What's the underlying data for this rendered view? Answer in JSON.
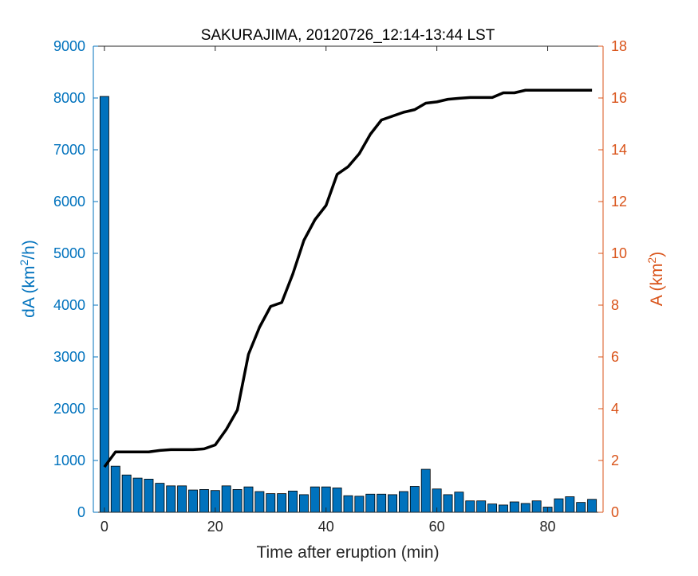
{
  "chart_data": {
    "type": "bar+line",
    "title": "SAKURAJIMA, 20120726_12:14-13:44 LST",
    "xlabel": "Time after eruption (min)",
    "ylabel_left": {
      "base": "dA (km",
      "sup": "2",
      "tail": "/h)"
    },
    "ylabel_right": {
      "base": "A (km",
      "sup": "2",
      "tail": ")"
    },
    "xlim": [
      -2,
      90
    ],
    "ylim_left": [
      0,
      9000
    ],
    "ylim_right": [
      0,
      18
    ],
    "xticks": [
      0,
      20,
      40,
      60,
      80
    ],
    "yticks_left": [
      0,
      1000,
      2000,
      3000,
      4000,
      5000,
      6000,
      7000,
      8000,
      9000
    ],
    "yticks_right": [
      0,
      2,
      4,
      6,
      8,
      10,
      12,
      14,
      16,
      18
    ],
    "grid": false,
    "colors": {
      "left_axis": "#0072BD",
      "right_axis": "#D95319",
      "bars": "#0072BD",
      "bar_edge": "#000000",
      "line": "#000000"
    },
    "bar_series": {
      "name": "dA",
      "x": [
        0,
        2,
        4,
        6,
        8,
        10,
        12,
        14,
        16,
        18,
        20,
        22,
        24,
        26,
        28,
        30,
        32,
        34,
        36,
        38,
        40,
        42,
        44,
        46,
        48,
        50,
        52,
        54,
        56,
        58,
        60,
        62,
        64,
        66,
        68,
        70,
        72,
        74,
        76,
        78,
        80,
        82,
        84,
        86,
        88
      ],
      "values": [
        8030,
        890,
        720,
        660,
        640,
        560,
        510,
        510,
        430,
        440,
        420,
        510,
        440,
        490,
        400,
        360,
        360,
        410,
        340,
        490,
        490,
        470,
        320,
        310,
        350,
        350,
        340,
        400,
        500,
        830,
        450,
        340,
        390,
        220,
        220,
        160,
        140,
        200,
        170,
        220,
        100,
        260,
        300,
        190,
        250
      ]
    },
    "line_series": {
      "name": "A",
      "x": [
        0,
        2,
        4,
        6,
        8,
        10,
        12,
        14,
        16,
        18,
        20,
        22,
        24,
        26,
        28,
        30,
        32,
        34,
        36,
        38,
        40,
        42,
        44,
        46,
        48,
        50,
        52,
        54,
        56,
        58,
        60,
        62,
        64,
        66,
        68,
        70,
        72,
        74,
        76,
        78,
        80,
        82,
        84,
        86,
        88
      ],
      "values": [
        1.75,
        2.33,
        2.33,
        2.33,
        2.33,
        2.39,
        2.42,
        2.42,
        2.42,
        2.45,
        2.6,
        3.2,
        3.95,
        6.1,
        7.15,
        7.95,
        8.1,
        9.2,
        10.5,
        11.3,
        11.85,
        13.05,
        13.35,
        13.85,
        14.6,
        15.15,
        15.3,
        15.45,
        15.55,
        15.8,
        15.85,
        15.95,
        15.99,
        16.02,
        16.02,
        16.02,
        16.2,
        16.2,
        16.3,
        16.3,
        16.3,
        16.3,
        16.3,
        16.3,
        16.3
      ]
    }
  }
}
